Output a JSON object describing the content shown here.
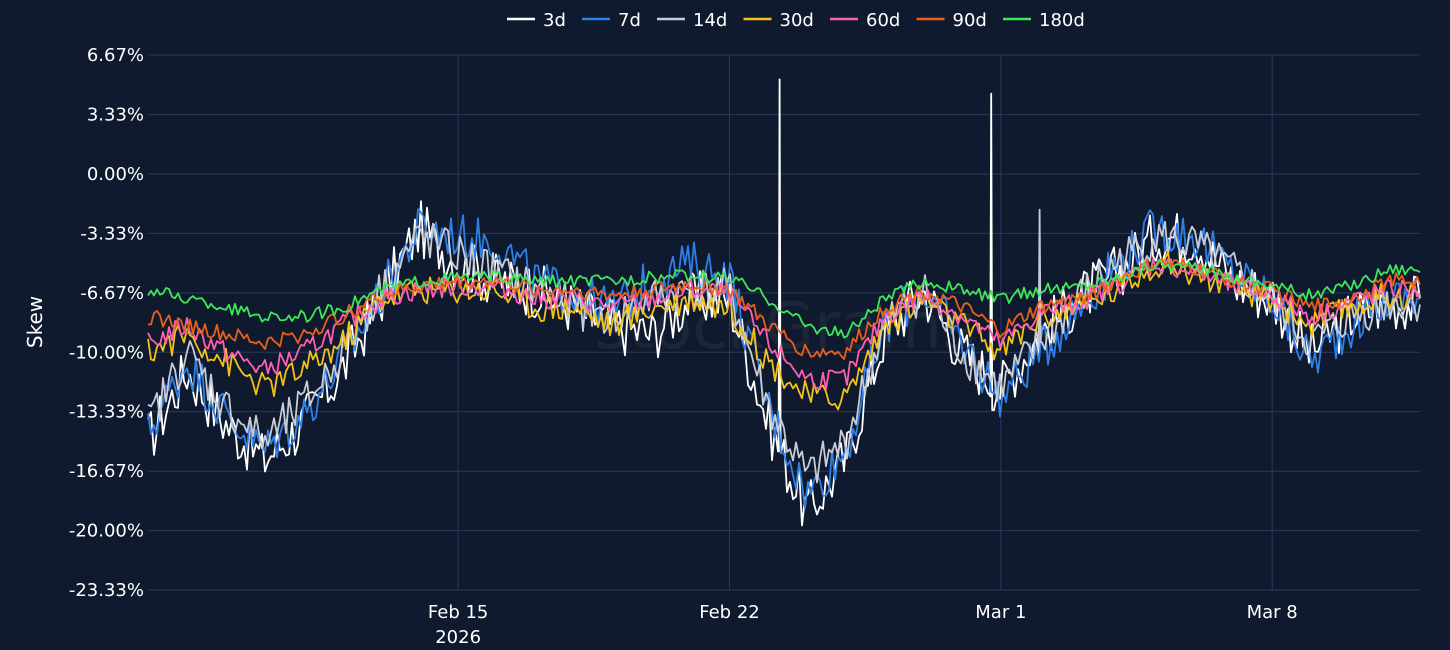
{
  "chart_data": {
    "type": "line",
    "ylabel": "Skew",
    "watermark": "stockGrams",
    "ylim": [
      -23.33,
      6.67
    ],
    "xlim": [
      "2026-02-07T00:00",
      "2026-03-11T19:30"
    ],
    "y_ticks": [
      {
        "value": 6.67,
        "label": "6.67%"
      },
      {
        "value": 3.33,
        "label": "3.33%"
      },
      {
        "value": 0.0,
        "label": "0.00%"
      },
      {
        "value": -3.33,
        "label": "-3.33%"
      },
      {
        "value": -6.67,
        "label": "-6.67%"
      },
      {
        "value": -10.0,
        "label": "-10.00%"
      },
      {
        "value": -13.33,
        "label": "-13.33%"
      },
      {
        "value": -16.67,
        "label": "-16.67%"
      },
      {
        "value": -20.0,
        "label": "-20.00%"
      },
      {
        "value": -23.33,
        "label": "-23.33%"
      }
    ],
    "x_ticks": [
      {
        "date": "2026-02-15",
        "label": "Feb 15",
        "year": "2026"
      },
      {
        "date": "2026-02-22",
        "label": "Feb 22",
        "year": ""
      },
      {
        "date": "2026-03-01",
        "label": "Mar 1",
        "year": ""
      },
      {
        "date": "2026-03-08",
        "label": "Mar 8",
        "year": ""
      }
    ],
    "grid": true,
    "legend_position": "top-center",
    "x": [
      "2026-02-07",
      "2026-02-08",
      "2026-02-09",
      "2026-02-10",
      "2026-02-11",
      "2026-02-12",
      "2026-02-13",
      "2026-02-14",
      "2026-02-15",
      "2026-02-16",
      "2026-02-17",
      "2026-02-18",
      "2026-02-19",
      "2026-02-20",
      "2026-02-21",
      "2026-02-22",
      "2026-02-23",
      "2026-02-24",
      "2026-02-25",
      "2026-02-26",
      "2026-02-27",
      "2026-02-28",
      "2026-03-01",
      "2026-03-02",
      "2026-03-03",
      "2026-03-04",
      "2026-03-05",
      "2026-03-06",
      "2026-03-07",
      "2026-03-08",
      "2026-03-09",
      "2026-03-10",
      "2026-03-11"
    ],
    "series": [
      {
        "name": "3d",
        "color": "#ffffff",
        "values": [
          -15.0,
          -11.0,
          -14.0,
          -16.0,
          -14.0,
          -11.0,
          -7.0,
          -3.0,
          -5.0,
          -6.0,
          -6.5,
          -7.5,
          -8.5,
          -9.0,
          -7.0,
          -7.0,
          -14.0,
          -19.0,
          -16.0,
          -9.0,
          -6.5,
          -10.0,
          -12.0,
          -9.0,
          -7.0,
          -5.5,
          -3.5,
          -3.5,
          -6.0,
          -7.0,
          -10.0,
          -8.0,
          -7.2
        ],
        "spikes": [
          {
            "x": "2026-02-23T07:00",
            "value": 5.3
          },
          {
            "x": "2026-02-28T18:00",
            "value": 4.5
          }
        ]
      },
      {
        "name": "7d",
        "color": "#2f7fe8",
        "values": [
          -14.5,
          -10.5,
          -13.5,
          -15.5,
          -13.5,
          -10.5,
          -6.8,
          -3.0,
          -3.5,
          -3.8,
          -6.0,
          -6.8,
          -7.5,
          -6.0,
          -5.0,
          -5.8,
          -13.0,
          -18.0,
          -15.5,
          -8.5,
          -6.5,
          -9.5,
          -12.5,
          -10.0,
          -7.5,
          -5.0,
          -3.0,
          -3.5,
          -5.5,
          -7.0,
          -10.5,
          -8.5,
          -7.0
        ]
      },
      {
        "name": "14d",
        "color": "#c8ccd6",
        "values": [
          -14.0,
          -10.0,
          -13.0,
          -15.0,
          -13.0,
          -10.0,
          -6.5,
          -3.5,
          -4.5,
          -5.5,
          -6.5,
          -7.5,
          -8.0,
          -7.0,
          -6.5,
          -6.5,
          -13.0,
          -17.0,
          -15.0,
          -8.5,
          -6.5,
          -10.0,
          -12.0,
          -9.5,
          -7.0,
          -5.0,
          -3.5,
          -4.0,
          -5.5,
          -7.0,
          -9.5,
          -8.0,
          -7.2
        ],
        "spikes": [
          {
            "x": "2026-03-02T00:00",
            "value": -2.0
          }
        ]
      },
      {
        "name": "30d",
        "color": "#f2c21b",
        "values": [
          -10.0,
          -9.0,
          -10.5,
          -12.0,
          -11.0,
          -9.5,
          -7.0,
          -6.5,
          -6.5,
          -6.5,
          -7.5,
          -7.5,
          -8.5,
          -7.5,
          -7.0,
          -7.5,
          -10.5,
          -12.5,
          -12.5,
          -8.5,
          -7.0,
          -8.5,
          -10.0,
          -8.0,
          -7.5,
          -6.5,
          -5.0,
          -5.5,
          -6.5,
          -7.0,
          -8.5,
          -7.5,
          -6.8
        ]
      },
      {
        "name": "60d",
        "color": "#ff5fb3",
        "values": [
          -9.5,
          -8.5,
          -10.0,
          -11.0,
          -10.0,
          -8.5,
          -7.0,
          -6.5,
          -6.3,
          -6.3,
          -7.0,
          -7.0,
          -7.5,
          -7.0,
          -6.5,
          -6.7,
          -9.5,
          -11.5,
          -11.5,
          -8.0,
          -6.8,
          -8.0,
          -9.5,
          -7.8,
          -7.2,
          -6.2,
          -5.0,
          -5.5,
          -6.3,
          -6.8,
          -8.0,
          -7.2,
          -6.5
        ]
      },
      {
        "name": "90d",
        "color": "#e8601c",
        "values": [
          -8.0,
          -8.5,
          -9.0,
          -9.5,
          -9.0,
          -8.0,
          -6.8,
          -6.3,
          -6.0,
          -6.0,
          -6.5,
          -6.5,
          -6.8,
          -6.5,
          -6.2,
          -6.5,
          -8.5,
          -10.0,
          -10.0,
          -7.5,
          -6.5,
          -7.5,
          -8.8,
          -7.5,
          -7.0,
          -6.0,
          -5.0,
          -5.3,
          -6.0,
          -6.5,
          -7.5,
          -7.0,
          -6.0
        ]
      },
      {
        "name": "180d",
        "color": "#3ee65a",
        "values": [
          -6.5,
          -7.0,
          -7.5,
          -8.0,
          -8.0,
          -7.5,
          -6.5,
          -6.0,
          -5.8,
          -5.8,
          -6.0,
          -6.0,
          -6.0,
          -5.8,
          -5.7,
          -5.8,
          -7.0,
          -8.5,
          -9.0,
          -7.0,
          -6.0,
          -6.5,
          -7.0,
          -6.5,
          -6.3,
          -5.8,
          -5.0,
          -5.3,
          -5.8,
          -6.2,
          -6.8,
          -6.3,
          -5.3
        ]
      }
    ]
  }
}
